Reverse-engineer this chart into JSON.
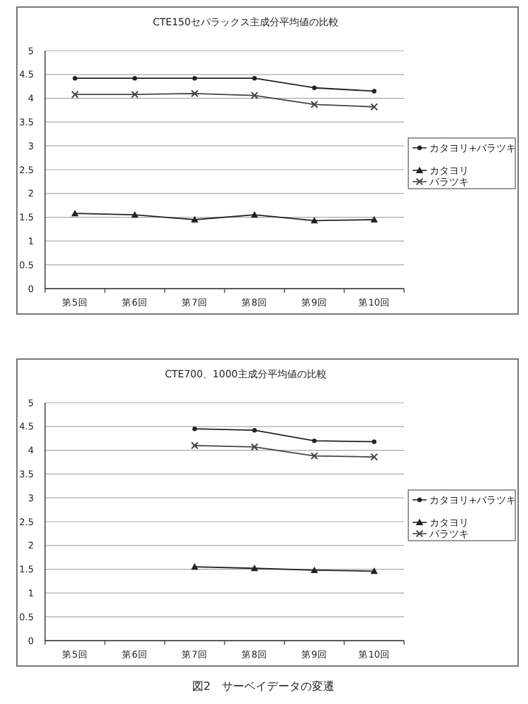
{
  "chart_data": [
    {
      "type": "line",
      "title": "CTE150セパラックス主成分平均値の比較",
      "categories": [
        "第5回",
        "第6回",
        "第7回",
        "第8回",
        "第9回",
        "第10回"
      ],
      "series": [
        {
          "name": "カタヨリ+バラツキ",
          "color": "#222222",
          "marker": "circle",
          "values": [
            4.42,
            4.42,
            4.42,
            4.42,
            4.22,
            4.15
          ]
        },
        {
          "name": "カタヨリ",
          "color": "#222222",
          "marker": "triangle",
          "values": [
            1.58,
            1.55,
            1.45,
            1.55,
            1.43,
            1.45
          ]
        },
        {
          "name": "バラツキ",
          "color": "#444444",
          "marker": "cross",
          "values": [
            4.08,
            4.08,
            4.1,
            4.06,
            3.87,
            3.82
          ]
        }
      ],
      "ylim": [
        0,
        5
      ],
      "yticks": [
        0,
        0.5,
        1,
        1.5,
        2,
        2.5,
        3,
        3.5,
        4,
        4.5,
        5
      ],
      "grid": "y",
      "legend": "right",
      "line_style": "solid"
    },
    {
      "type": "line",
      "title": "CTE700、1000主成分平均値の比較",
      "categories": [
        "第5回",
        "第6回",
        "第7回",
        "第8回",
        "第9回",
        "第10回"
      ],
      "series": [
        {
          "name": "カタヨリ+バラツキ",
          "color": "#222222",
          "marker": "circle",
          "values": [
            null,
            null,
            4.45,
            4.42,
            4.2,
            4.18
          ]
        },
        {
          "name": "カタヨリ",
          "color": "#222222",
          "marker": "triangle",
          "values": [
            null,
            null,
            1.55,
            1.52,
            1.48,
            1.46
          ]
        },
        {
          "name": "バラツキ",
          "color": "#444444",
          "marker": "cross",
          "values": [
            null,
            null,
            4.1,
            4.07,
            3.88,
            3.86
          ]
        }
      ],
      "ylim": [
        0,
        5
      ],
      "yticks": [
        0,
        0.5,
        1,
        1.5,
        2,
        2.5,
        3,
        3.5,
        4,
        4.5,
        5
      ],
      "grid": "y",
      "legend": "right",
      "line_style": "solid",
      "annotations": [
        "図2　サーベイデータの変遷"
      ]
    }
  ]
}
